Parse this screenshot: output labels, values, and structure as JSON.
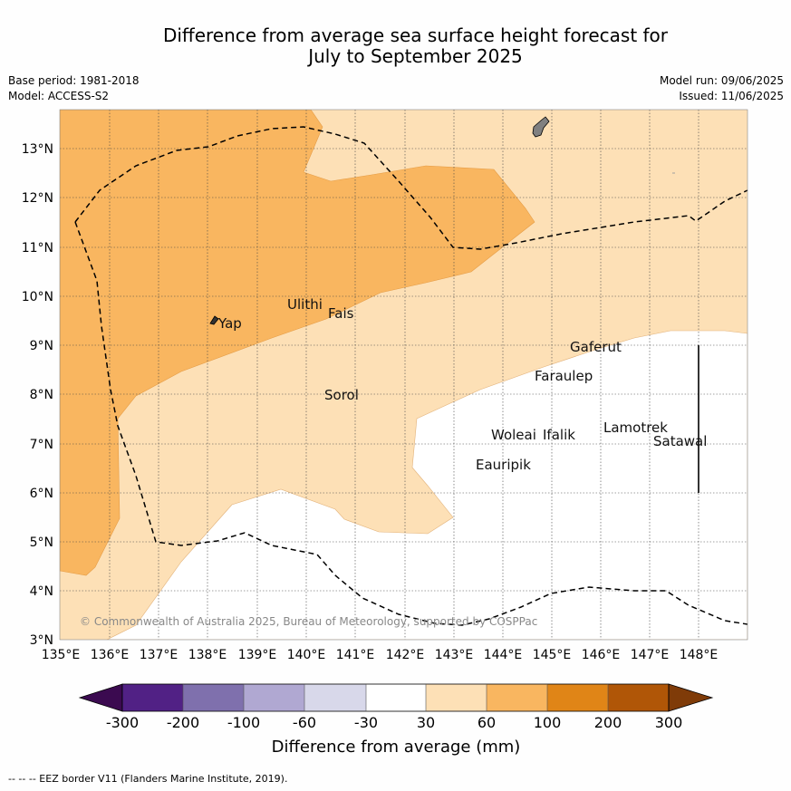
{
  "title": {
    "line1": "Difference from average sea surface height forecast for",
    "line2": "July to September 2025"
  },
  "meta": {
    "base_period": "Base period: 1981-2018",
    "model": "Model: ACCESS-S2",
    "model_run": "Model run: 09/06/2025",
    "issued": "Issued: 11/06/2025"
  },
  "map": {
    "lon_ticks": [
      "135°E",
      "136°E",
      "137°E",
      "138°E",
      "139°E",
      "140°E",
      "141°E",
      "142°E",
      "143°E",
      "144°E",
      "145°E",
      "146°E",
      "147°E",
      "148°E"
    ],
    "lat_ticks": [
      "3°N",
      "4°N",
      "5°N",
      "6°N",
      "7°N",
      "8°N",
      "9°N",
      "10°N",
      "11°N",
      "12°N",
      "13°N"
    ],
    "places": [
      {
        "name": "Yap"
      },
      {
        "name": "Ulithi"
      },
      {
        "name": "Fais"
      },
      {
        "name": "Sorol"
      },
      {
        "name": "Gaferut"
      },
      {
        "name": "Faraulep"
      },
      {
        "name": "Woleai"
      },
      {
        "name": "Ifalik"
      },
      {
        "name": "Lamotrek"
      },
      {
        "name": "Satawal"
      },
      {
        "name": "Eauripik"
      }
    ],
    "copyright": "© Commonwealth of Australia 2025, Bureau of Meteorology, supported by COSPPac",
    "colors": {
      "band_30_60": "#fde0b6",
      "band_60_100": "#f9b660",
      "land": "#808080"
    }
  },
  "colorbar": {
    "ticks": [
      "-300",
      "-200",
      "-100",
      "-60",
      "-30",
      "30",
      "60",
      "100",
      "200",
      "300"
    ],
    "colors": [
      "#3b0a50",
      "#512185",
      "#7f70ad",
      "#b0a8d2",
      "#d8d8ea",
      "#ffffff",
      "#fde0b6",
      "#f9b660",
      "#e08517",
      "#b05607",
      "#7f3b08"
    ],
    "label": "Difference from average (mm)"
  },
  "footer": "--  --  -- EEZ border V11 (Flanders Marine Institute, 2019)."
}
